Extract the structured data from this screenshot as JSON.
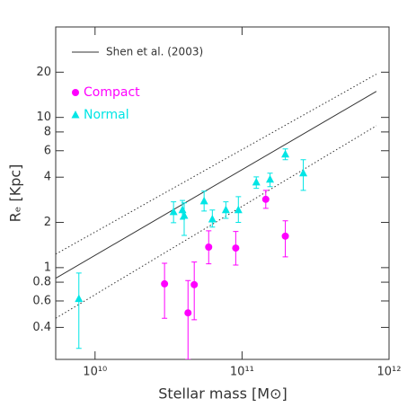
{
  "chart_data": {
    "type": "scatter",
    "xlabel": "Stellar mass [M⊙]",
    "ylabel": "Rₑ [Kpc]",
    "xscale": "log",
    "yscale": "log",
    "xlim": [
      5400000000,
      1000000000000
    ],
    "ylim": [
      0.245,
      40
    ],
    "xticks": [
      {
        "value": 10000000000,
        "label": "10¹⁰"
      },
      {
        "value": 100000000000,
        "label": "10¹¹"
      },
      {
        "value": 1000000000000,
        "label": "10¹²"
      }
    ],
    "yticks": [
      0.4,
      0.6,
      0.8,
      1,
      2,
      4,
      6,
      8,
      10,
      20
    ],
    "series": [
      {
        "name": "Shen et al. (2003)",
        "type": "line",
        "dash": "solid",
        "color": "#333333",
        "x": [
          5400000000,
          820000000000
        ],
        "values": [
          0.85,
          14.9
        ]
      },
      {
        "type": "line",
        "dash": "dotted",
        "color": "#333333",
        "x": [
          5400000000,
          820000000000
        ],
        "values": [
          1.23,
          19.4
        ]
      },
      {
        "type": "line",
        "dash": "dotted",
        "color": "#333333",
        "x": [
          5400000000,
          820000000000
        ],
        "values": [
          0.46,
          8.8
        ]
      },
      {
        "name": "Compact",
        "type": "scatter",
        "marker": "circle",
        "color": "#ff00ff",
        "x": [
          29700000000,
          42900000000,
          47300000000,
          59300000000,
          90600000000,
          145000000000,
          197000000000
        ],
        "values": [
          0.78,
          0.5,
          0.77,
          1.37,
          1.35,
          2.85,
          1.62
        ],
        "upper": [
          1.07,
          0.82,
          1.09,
          1.76,
          1.74,
          3.27,
          2.05
        ],
        "lower": [
          0.46,
          0.245,
          0.45,
          1.06,
          1.04,
          2.48,
          1.18
        ]
      },
      {
        "name": "Normal",
        "type": "scatter",
        "marker": "triangle",
        "color": "#00e5e5",
        "x": [
          7760000000,
          34200000000,
          39300000000,
          40400000000,
          55200000000,
          62800000000,
          77600000000,
          94400000000,
          125000000000,
          155000000000,
          197000000000,
          261000000000
        ],
        "values": [
          0.62,
          2.35,
          2.42,
          2.22,
          2.77,
          2.1,
          2.42,
          2.42,
          3.7,
          3.86,
          5.68,
          4.25
        ],
        "upper": [
          0.92,
          2.74,
          2.8,
          2.7,
          3.23,
          2.42,
          2.74,
          2.97,
          4.02,
          4.25,
          6.17,
          5.23
        ],
        "lower": [
          0.29,
          1.99,
          2.1,
          1.64,
          2.38,
          1.86,
          2.13,
          2.0,
          3.37,
          3.46,
          5.23,
          3.27
        ]
      }
    ]
  }
}
